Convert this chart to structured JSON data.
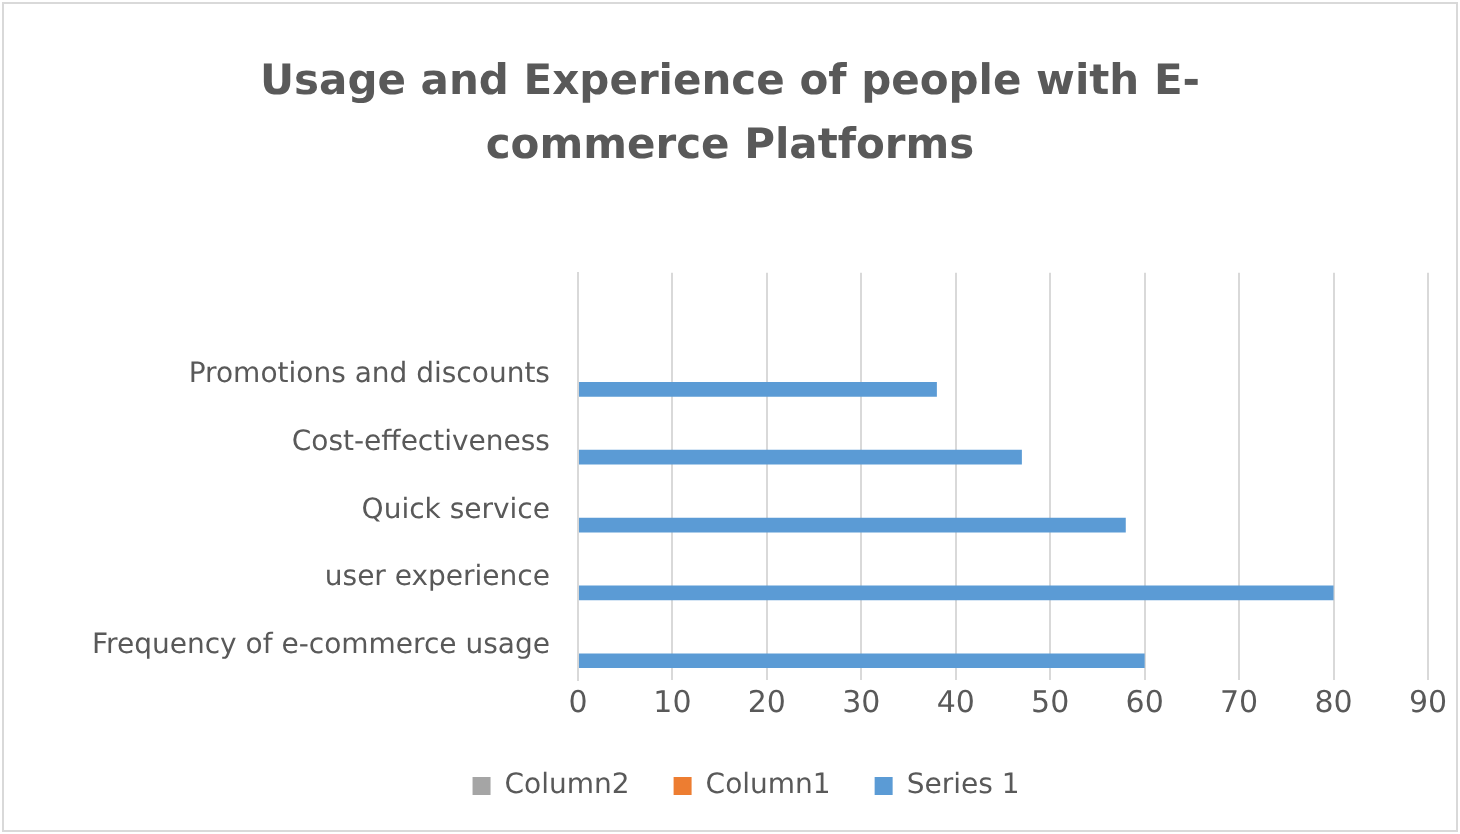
{
  "chart_data": {
    "type": "bar",
    "orientation": "horizontal",
    "title": "Usage and Experience of people with E-commerce Platforms",
    "categories": [
      null,
      "Promotions and discounts",
      "Cost-effectiveness",
      "Quick service",
      "user experience",
      "Frequency of e-commerce usage"
    ],
    "series": [
      {
        "name": "Column2",
        "color": "#a5a5a5",
        "values": [
          null,
          null,
          null,
          null,
          null,
          null
        ]
      },
      {
        "name": "Column1",
        "color": "#ed7d31",
        "values": [
          null,
          null,
          null,
          null,
          null,
          null
        ]
      },
      {
        "name": "Series 1",
        "color": "#5b9bd5",
        "values": [
          null,
          38,
          47,
          58,
          80,
          60
        ]
      }
    ],
    "xlim": [
      0,
      90
    ],
    "xticks": [
      0,
      10,
      20,
      30,
      40,
      50,
      60,
      70,
      80,
      90
    ],
    "grid": "x",
    "legend": "bottom"
  }
}
